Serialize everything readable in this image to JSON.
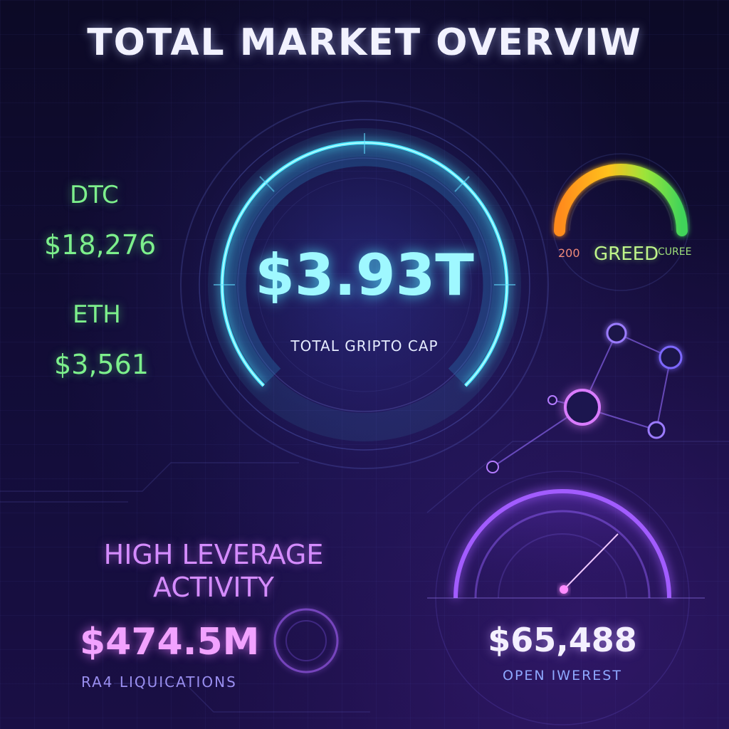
{
  "header": {
    "title": "TOTAL MARKET OVERVIW"
  },
  "coins": [
    {
      "label": "DTC",
      "price": "$18,276"
    },
    {
      "label": "ETH",
      "price": "$3,561"
    }
  ],
  "main_gauge": {
    "value": "$3.93T",
    "label": "TOTAL GRIPTO CAP"
  },
  "fear_greed": {
    "value": "200",
    "label": "GREED",
    "tag": "CUREE"
  },
  "leverage": {
    "title_line1": "HIGH LEVERAGE",
    "title_line2": "ACTIVITY",
    "value": "$474.5M",
    "label": "RA4 LIQUICATIONS"
  },
  "open_interest": {
    "value": "$65,488",
    "label": "OPEN IWEREST"
  },
  "colors": {
    "accent_cyan": "#48e8ff",
    "accent_green": "#7df08c",
    "accent_purple": "#b45cff",
    "background": "#0d0a2a"
  },
  "icons": [
    "market-cap-gauge-icon",
    "greed-meter-icon",
    "network-nodes-icon",
    "open-interest-dial-icon"
  ]
}
